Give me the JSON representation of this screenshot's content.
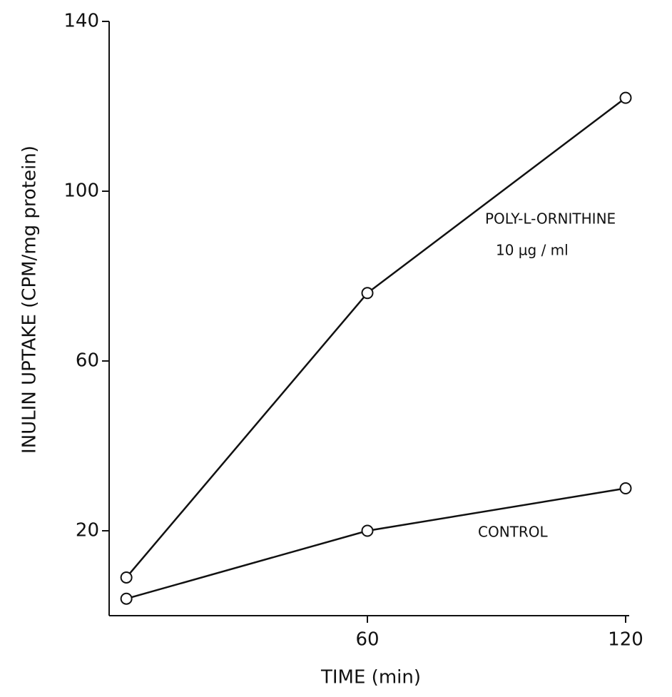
{
  "chart_data": {
    "type": "line",
    "x_label": "TIME (min)",
    "y_label": "INULIN UPTAKE (CPM/mg protein)",
    "series": [
      {
        "name": "POLY-L-ORNITHINE",
        "color": "#111111",
        "x": [
          4,
          60,
          120
        ],
        "values": [
          9,
          76,
          122
        ]
      },
      {
        "name": "CONTROL",
        "color": "#111111",
        "x": [
          4,
          60,
          120
        ],
        "values": [
          4,
          20,
          30
        ]
      }
    ],
    "annotations": [
      "10 µg / ml"
    ],
    "xlim": [
      0,
      120
    ],
    "xticks": [
      60,
      120
    ],
    "ylim": [
      0,
      140
    ],
    "yticks": [
      20,
      60,
      100,
      140
    ],
    "grid": false
  }
}
